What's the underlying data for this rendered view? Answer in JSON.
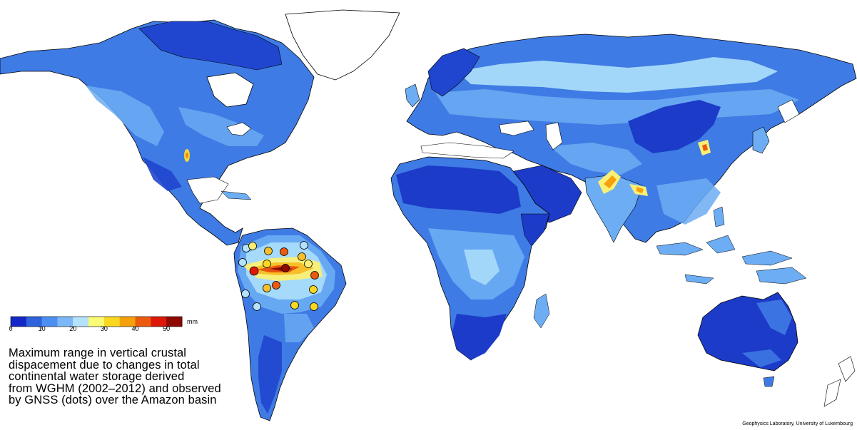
{
  "legend": {
    "unit": "mm",
    "ticks": [
      "0",
      "10",
      "20",
      "30",
      "40",
      "50"
    ],
    "colors": [
      "#1428c8",
      "#2e63dc",
      "#4d8ff0",
      "#7cb8f7",
      "#b5e2fb",
      "#fbfb74",
      "#fbd820",
      "#f5a00c",
      "#ec5a10",
      "#dd1808",
      "#8e0a00"
    ]
  },
  "caption": [
    "Maximum range in vertical crustal",
    "dispacement due to changes in total",
    "continental water storage derived",
    "from WGHM (2002–2012) and observed",
    "by GNSS (dots) over the Amazon basin"
  ],
  "credit": "Geophysics Laboratory, University of Luxembourg",
  "colors": {
    "deep_blue": "#1e3fd0",
    "mid_blue": "#3e7ae6",
    "light_blue": "#6fb0f3",
    "pale_blue": "#a9dcfa",
    "ocean": "#ffffff",
    "outline": "#000000"
  }
}
